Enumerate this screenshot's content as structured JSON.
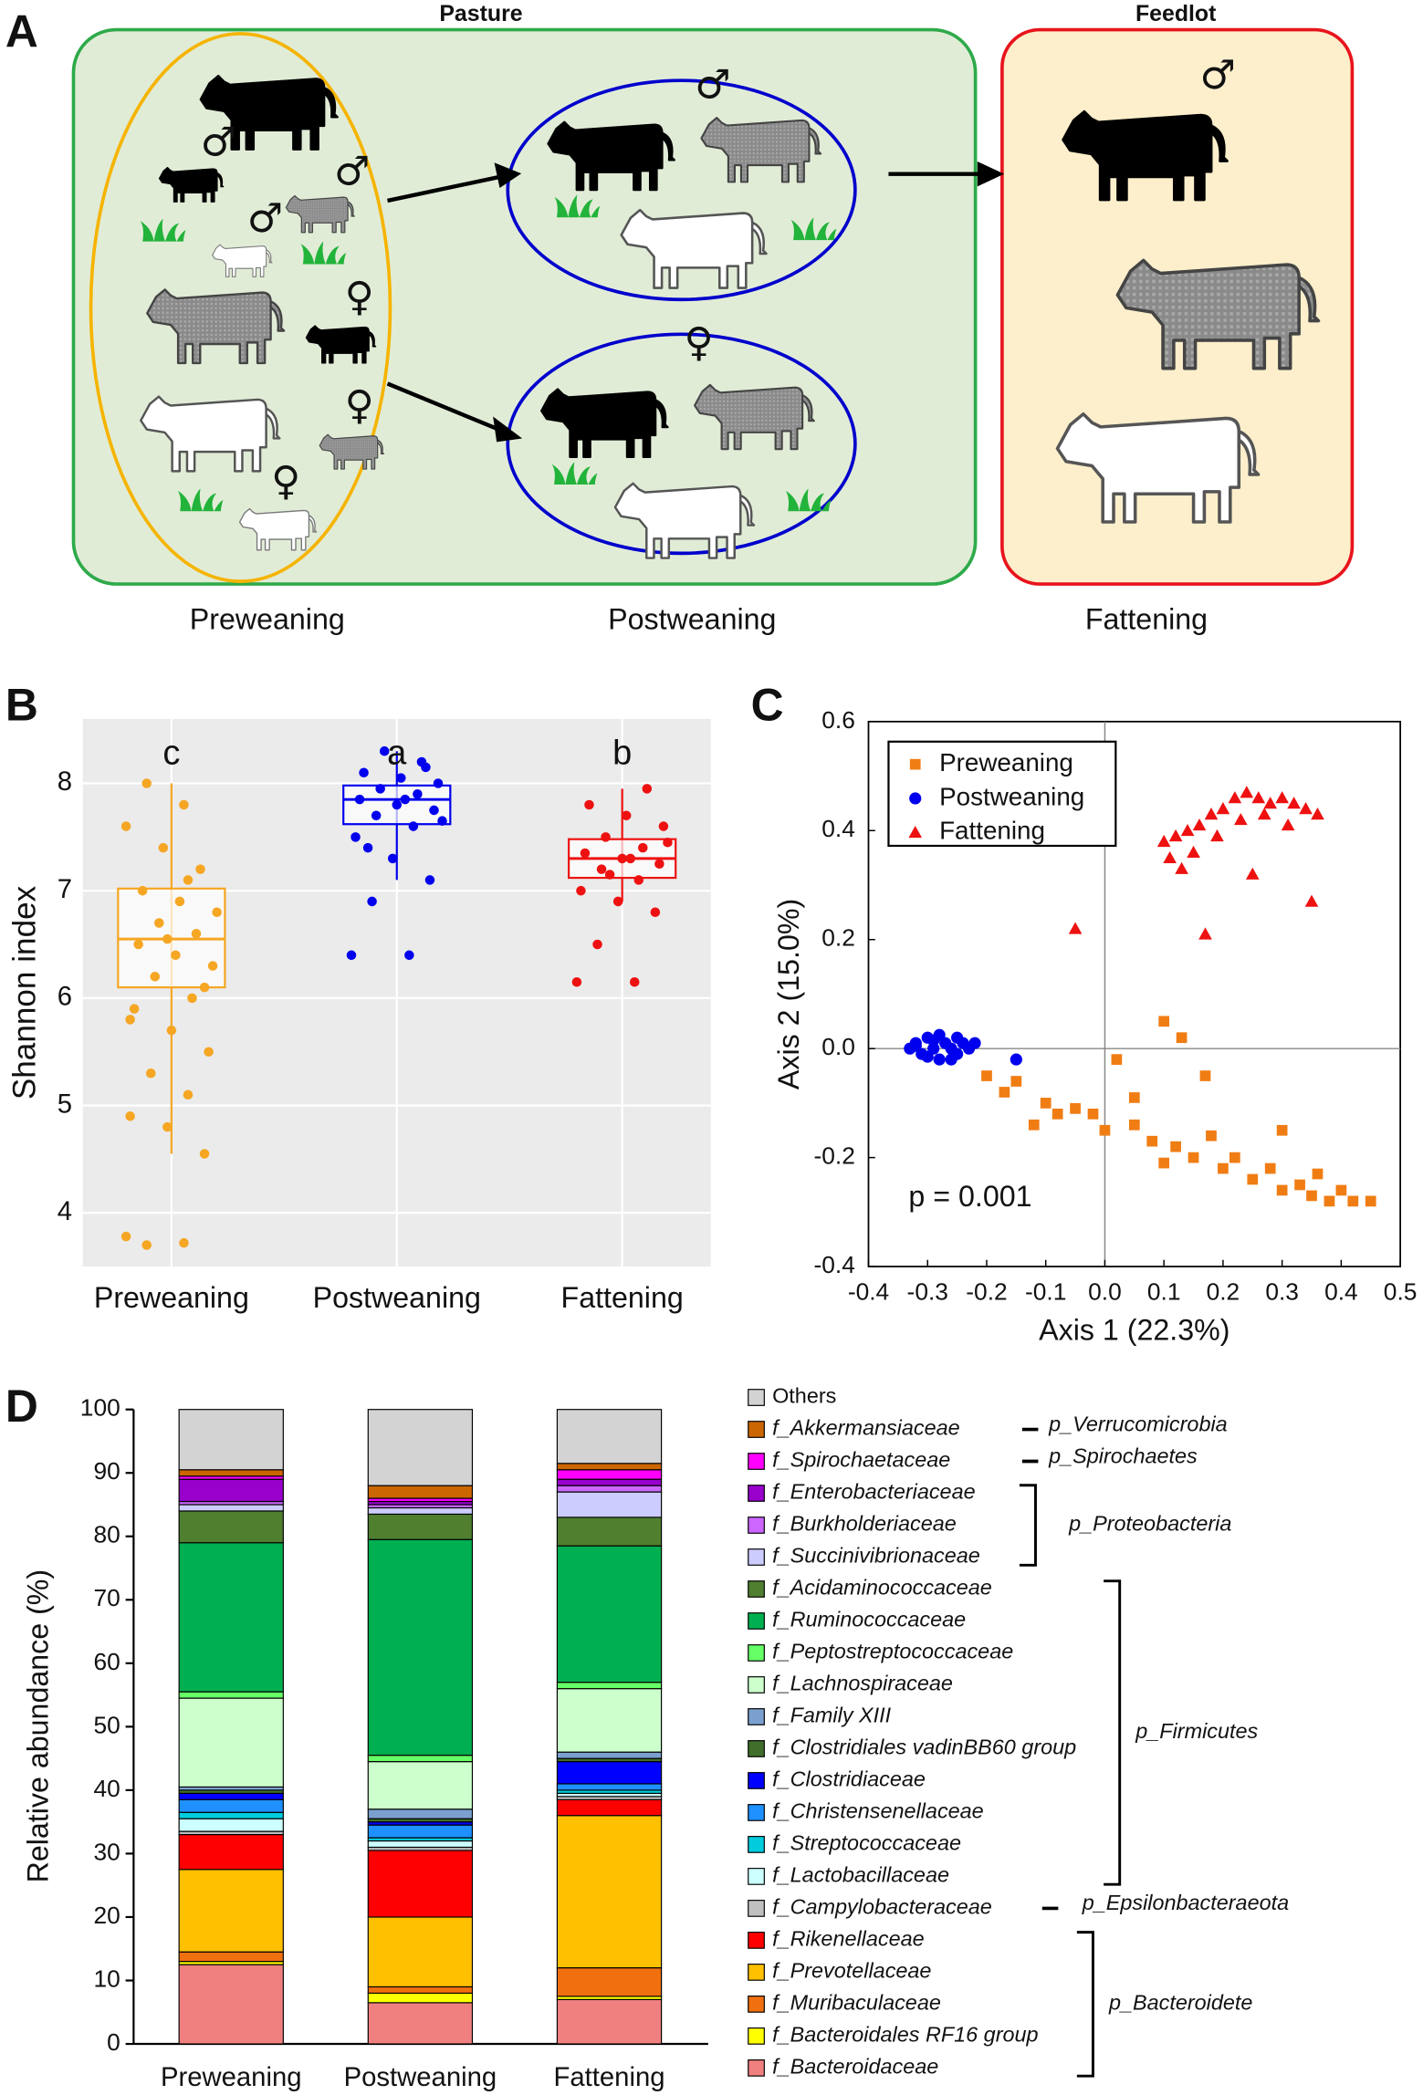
{
  "panel_labels": [
    "A",
    "B",
    "C",
    "D"
  ],
  "panel_a": {
    "pasture": "Pasture",
    "feedlot": "Feedlot",
    "stages": [
      "Preweaning",
      "Postweaning",
      "Fattening"
    ],
    "male": "♂",
    "female": "♀"
  },
  "chart_data": [
    {
      "type": "box",
      "ylabel": "Shannon index",
      "categories": [
        "Preweaning",
        "Postweaning",
        "Fattening"
      ],
      "letters": [
        "c",
        "a",
        "b"
      ],
      "colors": [
        "#f5a623",
        "#0000ee",
        "#ee1111"
      ],
      "ylim": [
        3.5,
        8.6
      ],
      "yticks": [
        4,
        5,
        6,
        7,
        8
      ],
      "grid": true,
      "boxes": [
        {
          "q1": 6.1,
          "median": 6.55,
          "q3": 7.02,
          "whisker_low": 4.55,
          "whisker_high": 8.0,
          "points": [
            3.78,
            3.72,
            3.7,
            4.55,
            4.8,
            4.9,
            5.1,
            5.3,
            5.5,
            5.7,
            5.9,
            6.0,
            6.2,
            6.3,
            6.4,
            6.5,
            6.6,
            6.7,
            6.8,
            6.9,
            7.0,
            7.2,
            7.4,
            7.6,
            7.8,
            8.0,
            6.1,
            6.55,
            5.8,
            7.1
          ]
        },
        {
          "q1": 7.62,
          "median": 7.85,
          "q3": 7.98,
          "whisker_low": 7.1,
          "whisker_high": 8.3,
          "points": [
            6.4,
            6.4,
            6.9,
            7.1,
            7.3,
            7.5,
            7.6,
            7.7,
            7.75,
            7.8,
            7.85,
            7.9,
            7.95,
            8.0,
            8.05,
            8.1,
            8.2,
            8.3,
            7.65,
            7.85,
            7.4,
            8.15
          ]
        },
        {
          "q1": 7.12,
          "median": 7.3,
          "q3": 7.48,
          "whisker_low": 6.9,
          "whisker_high": 7.95,
          "points": [
            6.15,
            6.15,
            6.5,
            6.8,
            6.9,
            7.0,
            7.1,
            7.2,
            7.25,
            7.3,
            7.35,
            7.4,
            7.5,
            7.6,
            7.7,
            7.8,
            7.95,
            7.15,
            7.45,
            7.3
          ]
        }
      ]
    },
    {
      "type": "scatter",
      "xlabel": "Axis 1 (22.3%)",
      "ylabel": "Axis 2 (15.0%)",
      "xlim": [
        -0.4,
        0.5
      ],
      "ylim": [
        -0.4,
        0.6
      ],
      "xticks": [
        -0.4,
        -0.3,
        -0.2,
        -0.1,
        {
          "value": 0,
          "label": "0.0"
        },
        0.1,
        0.2,
        0.3,
        0.4,
        0.5
      ],
      "yticks": [
        -0.4,
        -0.2,
        {
          "value": 0,
          "label": "0.0"
        },
        0.2,
        0.4,
        0.6
      ],
      "annotation": "p = 0.001",
      "legend": "upper left",
      "series": [
        {
          "name": "Preweaning",
          "color": "#f07d14",
          "marker": "square",
          "x": [
            -0.2,
            -0.17,
            -0.15,
            -0.1,
            -0.08,
            -0.05,
            -0.02,
            0,
            0.02,
            0.05,
            0.08,
            0.1,
            0.12,
            0.15,
            0.18,
            0.2,
            0.22,
            0.25,
            0.28,
            0.3,
            0.33,
            0.35,
            0.38,
            0.4,
            0.42,
            0.45,
            0.13,
            0.17,
            0.05,
            -0.12,
            0.1,
            0.3,
            0.36
          ],
          "y": [
            -0.05,
            -0.08,
            -0.06,
            -0.1,
            -0.12,
            -0.11,
            -0.12,
            -0.15,
            -0.02,
            -0.14,
            -0.17,
            0.05,
            -0.18,
            -0.2,
            -0.16,
            -0.22,
            -0.2,
            -0.24,
            -0.22,
            -0.26,
            -0.25,
            -0.27,
            -0.28,
            -0.26,
            -0.28,
            -0.28,
            0.02,
            -0.05,
            -0.09,
            -0.14,
            -0.21,
            -0.15,
            -0.23
          ]
        },
        {
          "name": "Postweaning",
          "color": "#0000ee",
          "marker": "circle",
          "x": [
            -0.33,
            -0.32,
            -0.31,
            -0.3,
            -0.29,
            -0.28,
            -0.27,
            -0.26,
            -0.25,
            -0.24,
            -0.23,
            -0.22,
            -0.3,
            -0.28,
            -0.26,
            -0.32,
            -0.29,
            -0.25,
            -0.15
          ],
          "y": [
            0,
            0.01,
            -0.01,
            0.02,
            0,
            -0.02,
            0.01,
            0,
            -0.01,
            0.01,
            0,
            0.01,
            -0.015,
            0.025,
            -0.02,
            0.005,
            0.015,
            0.02,
            -0.02
          ]
        },
        {
          "name": "Fattening",
          "color": "#ee1111",
          "marker": "triangle",
          "x": [
            -0.05,
            0.1,
            0.12,
            0.14,
            0.16,
            0.18,
            0.2,
            0.22,
            0.24,
            0.26,
            0.28,
            0.3,
            0.32,
            0.34,
            0.36,
            0.17,
            0.35,
            0.11,
            0.15,
            0.19,
            0.23,
            0.27,
            0.31,
            0.25,
            0.13
          ],
          "y": [
            0.22,
            0.38,
            0.39,
            0.4,
            0.41,
            0.43,
            0.44,
            0.46,
            0.47,
            0.46,
            0.45,
            0.46,
            0.45,
            0.44,
            0.43,
            0.21,
            0.27,
            0.35,
            0.36,
            0.39,
            0.42,
            0.43,
            0.41,
            0.32,
            0.33
          ]
        }
      ]
    },
    {
      "type": "stacked_bar",
      "ylabel": "Relative abundance (%)",
      "categories": [
        "Preweaning",
        "Postweaning",
        "Fattening"
      ],
      "ylim": [
        0,
        100
      ],
      "yticks": [
        0,
        10,
        20,
        30,
        40,
        50,
        60,
        70,
        80,
        90,
        100
      ],
      "series": [
        {
          "name": "f_Bacteroidaceae",
          "color": "#f08080",
          "values": [
            12.5,
            6.5,
            7
          ]
        },
        {
          "name": "f_Bacteroidales RF16 group",
          "color": "#ffff00",
          "values": [
            0.5,
            1.5,
            0.5
          ]
        },
        {
          "name": "f_Muribaculaceae",
          "color": "#f07010",
          "values": [
            1.5,
            1,
            4.5
          ]
        },
        {
          "name": "f_Prevotellaceae",
          "color": "#ffc000",
          "values": [
            13,
            11,
            24
          ]
        },
        {
          "name": "f_Rikenellaceae",
          "color": "#ff0000",
          "values": [
            5.5,
            10.5,
            2.5
          ]
        },
        {
          "name": "f_Campylobacteraceae",
          "color": "#c0c0c0",
          "values": [
            0.5,
            0.5,
            0.5
          ]
        },
        {
          "name": "f_Lactobacillaceae",
          "color": "#ccffff",
          "values": [
            2,
            1,
            0.5
          ]
        },
        {
          "name": "f_Streptococcaceae",
          "color": "#00ccdd",
          "values": [
            1,
            0.5,
            0.5
          ]
        },
        {
          "name": "f_Christensenellaceae",
          "color": "#1e90ff",
          "values": [
            2,
            2,
            1
          ]
        },
        {
          "name": "f_Clostridiaceae",
          "color": "#0000ff",
          "values": [
            1,
            0.5,
            3.5
          ]
        },
        {
          "name": "f_Clostridiales vadinBB60 group",
          "color": "#3f6f2a",
          "values": [
            0.5,
            0.5,
            0.5
          ]
        },
        {
          "name": "f_Family XIII",
          "color": "#7ba0d0",
          "values": [
            0.5,
            1.5,
            1
          ]
        },
        {
          "name": "f_Lachnospiraceae",
          "color": "#ccffcc",
          "values": [
            14,
            7.5,
            10
          ]
        },
        {
          "name": "f_Peptostreptococcaceae",
          "color": "#66ff66",
          "values": [
            1,
            1,
            1
          ]
        },
        {
          "name": "f_Ruminococcaceae",
          "color": "#00b050",
          "values": [
            23.5,
            34,
            21.5
          ]
        },
        {
          "name": "f_Acidaminococcaceae",
          "color": "#4f7f2f",
          "values": [
            5,
            4,
            4.5
          ]
        },
        {
          "name": "f_Succinivibrionaceae",
          "color": "#ccccff",
          "values": [
            1,
            1,
            4
          ]
        },
        {
          "name": "f_Burkholderiaceae",
          "color": "#cc66ff",
          "values": [
            0.5,
            0.5,
            1
          ]
        },
        {
          "name": "f_Enterobacteriaceae",
          "color": "#9900cc",
          "values": [
            3.5,
            0.5,
            1
          ]
        },
        {
          "name": "f_Spirochaetaceae",
          "color": "#ff00ff",
          "values": [
            0.5,
            0.5,
            1.5
          ]
        },
        {
          "name": "f_Akkermansiaceae",
          "color": "#cc6600",
          "values": [
            1,
            2,
            1
          ]
        },
        {
          "name": "Others",
          "color": "#d3d3d3",
          "values": [
            9.5,
            12,
            8.5
          ]
        }
      ],
      "annotations": [
        "p_Verrucomicrobia",
        "p_Spirochaetes",
        "p_Proteobacteria",
        "p_Firmicutes",
        "p_Epsilonbacteraeota",
        "p_Bacteroidete"
      ]
    }
  ]
}
